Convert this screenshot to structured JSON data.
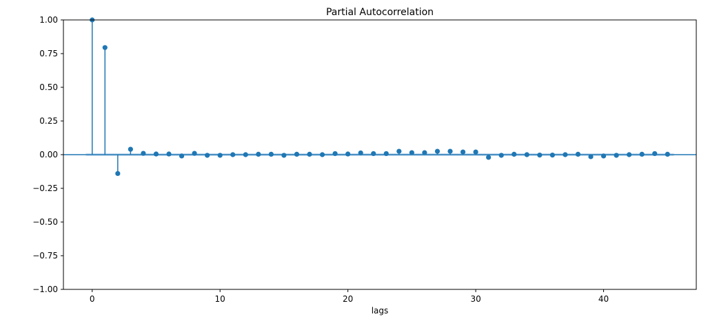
{
  "chart_data": {
    "type": "scatter",
    "subtype": "stem",
    "title": "Partial Autocorrelation",
    "xlabel": "lags",
    "ylabel": "",
    "xlim": [
      -2.25,
      47.25
    ],
    "ylim": [
      -1.0,
      1.0
    ],
    "xticks": [
      0,
      10,
      20,
      30,
      40
    ],
    "xtick_labels": [
      "0",
      "10",
      "20",
      "30",
      "40"
    ],
    "yticks": [
      1.0,
      0.75,
      0.5,
      0.25,
      0.0,
      -0.25,
      -0.5,
      -0.75,
      -1.0
    ],
    "ytick_labels": [
      "1.00",
      "0.75",
      "0.50",
      "0.25",
      "0.00",
      "−0.25",
      "−0.50",
      "−0.75",
      "−1.00"
    ],
    "grid": false,
    "confidence_band": 0.01,
    "x": [
      0,
      1,
      2,
      3,
      4,
      5,
      6,
      7,
      8,
      9,
      10,
      11,
      12,
      13,
      14,
      15,
      16,
      17,
      18,
      19,
      20,
      21,
      22,
      23,
      24,
      25,
      26,
      27,
      28,
      29,
      30,
      31,
      32,
      33,
      34,
      35,
      36,
      37,
      38,
      39,
      40,
      41,
      42,
      43,
      44,
      45
    ],
    "values": [
      1.0,
      0.795,
      -0.14,
      0.04,
      0.01,
      0.005,
      0.005,
      -0.01,
      0.01,
      -0.005,
      -0.005,
      0.0,
      0.0,
      0.003,
      0.003,
      -0.005,
      0.003,
      0.003,
      0.0,
      0.008,
      0.005,
      0.013,
      0.008,
      0.008,
      0.025,
      0.015,
      0.015,
      0.025,
      0.025,
      0.02,
      0.02,
      -0.02,
      -0.005,
      0.003,
      0.0,
      -0.003,
      -0.003,
      0.0,
      0.003,
      -0.015,
      -0.01,
      -0.005,
      0.0,
      0.003,
      0.008,
      0.003
    ],
    "colors": {
      "marker": "#1f77b4",
      "band": "#a6c9e8"
    }
  }
}
